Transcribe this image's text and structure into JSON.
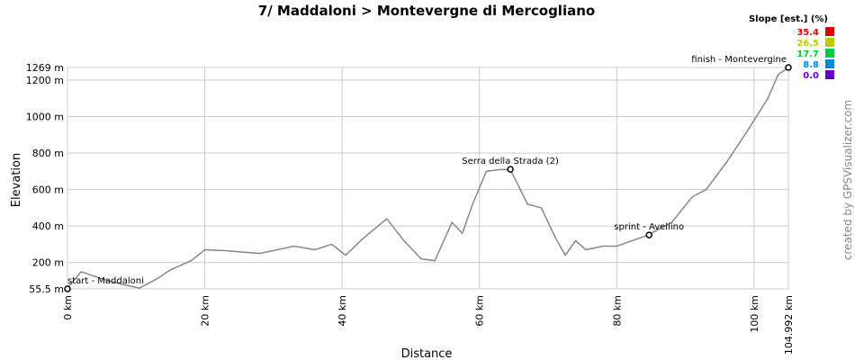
{
  "chart_data": {
    "type": "line",
    "title": "7/ Maddaloni > Montevergne di Mercogliano",
    "x_label": "Distance",
    "y_label": "Elevation",
    "credit": "created by GPSVisualizer.com",
    "color": "#888888",
    "x": [
      0,
      2,
      5,
      8,
      10.5,
      13,
      15,
      18,
      20,
      23,
      28,
      33,
      36,
      38.5,
      40.5,
      43,
      46.5,
      49,
      51.5,
      53.5,
      56,
      57.5,
      59,
      61,
      63,
      64.5,
      67,
      69,
      71,
      72.5,
      74,
      75.5,
      78,
      80,
      84.5,
      88,
      91,
      93,
      96,
      99,
      102,
      103.5,
      104.992
    ],
    "values": [
      60,
      150,
      110,
      80,
      60,
      110,
      160,
      210,
      270,
      265,
      250,
      290,
      270,
      300,
      240,
      330,
      440,
      320,
      220,
      210,
      420,
      360,
      520,
      700,
      710,
      710,
      520,
      500,
      340,
      240,
      320,
      270,
      290,
      290,
      350,
      420,
      560,
      600,
      750,
      920,
      1100,
      1230,
      1269
    ],
    "xlim": [
      0,
      104.992
    ],
    "ylim": [
      55.5,
      1269
    ],
    "xticks": [
      {
        "value": 0,
        "label": "0 km"
      },
      {
        "value": 20,
        "label": "20 km"
      },
      {
        "value": 40,
        "label": "40 km"
      },
      {
        "value": 60,
        "label": "60 km"
      },
      {
        "value": 80,
        "label": "80 km"
      },
      {
        "value": 100,
        "label": "100 km"
      },
      {
        "value": 104.992,
        "label": "104.992 km"
      }
    ],
    "yticks": [
      {
        "value": 55.5,
        "label": "55.5 m"
      },
      {
        "value": 200,
        "label": "200 m"
      },
      {
        "value": 400,
        "label": "400 m"
      },
      {
        "value": 600,
        "label": "600 m"
      },
      {
        "value": 800,
        "label": "800 m"
      },
      {
        "value": 1000,
        "label": "1000 m"
      },
      {
        "value": 1200,
        "label": "1200 m"
      },
      {
        "value": 1269,
        "label": "1269 m"
      }
    ],
    "grid": true,
    "annotations": [
      {
        "text": "start - Maddaloni",
        "x": 0,
        "y": 55.5
      },
      {
        "text": "Serra della Strada (2)",
        "x": 64.5,
        "y": 711
      },
      {
        "text": "sprint - Avellino",
        "x": 84.7,
        "y": 351
      },
      {
        "text": "finish - Montevergine",
        "x": 104.992,
        "y": 1269
      }
    ],
    "legend": {
      "title": "Slope [est.] (%)",
      "items": [
        {
          "label": "35.4",
          "color": "#dd0000"
        },
        {
          "label": "26.5",
          "color": "#bbcc00"
        },
        {
          "label": "17.7",
          "color": "#00cc44"
        },
        {
          "label": "8.8",
          "color": "#0088dd"
        },
        {
          "label": "0.0",
          "color": "#6600cc"
        }
      ]
    }
  }
}
